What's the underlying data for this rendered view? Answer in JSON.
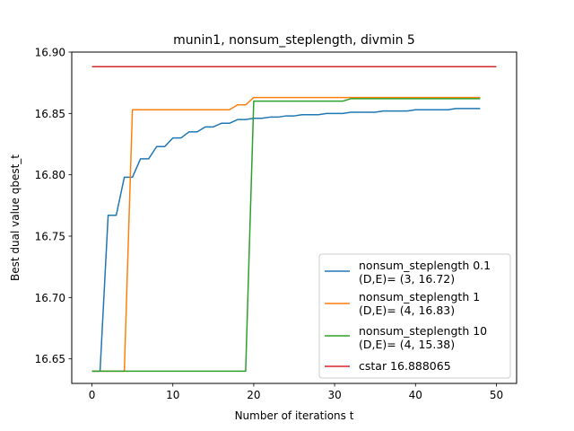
{
  "chart_data": {
    "type": "line",
    "title": "munin1, nonsum_steplength, divmin 5",
    "xlabel": "Number of iterations t",
    "ylabel": "Best dual value qbest_t",
    "xlim": [
      -2.5,
      52.5
    ],
    "ylim": [
      16.63,
      16.9
    ],
    "xticks": [
      0,
      10,
      20,
      30,
      40,
      50
    ],
    "xtick_labels": [
      "0",
      "10",
      "20",
      "30",
      "40",
      "50"
    ],
    "yticks": [
      16.65,
      16.7,
      16.75,
      16.8,
      16.85,
      16.9
    ],
    "ytick_labels": [
      "16.65",
      "16.70",
      "16.75",
      "16.80",
      "16.85",
      "16.90"
    ],
    "grid": false,
    "legend_position": "lower-right",
    "series": [
      {
        "name": "nonsum_steplength 0.1",
        "name_line2": "(D,E)= (3, 16.72)",
        "color": "#1f77b4",
        "x": [
          0,
          1,
          2,
          3,
          4,
          5,
          6,
          7,
          8,
          9,
          10,
          11,
          12,
          13,
          14,
          15,
          16,
          17,
          18,
          19,
          20,
          21,
          22,
          23,
          24,
          25,
          26,
          27,
          28,
          29,
          30,
          31,
          32,
          33,
          34,
          35,
          36,
          37,
          38,
          39,
          40,
          41,
          42,
          43,
          44,
          45,
          46,
          47,
          48
        ],
        "y": [
          16.64,
          16.64,
          16.767,
          16.767,
          16.798,
          16.798,
          16.813,
          16.813,
          16.823,
          16.823,
          16.83,
          16.83,
          16.835,
          16.835,
          16.839,
          16.839,
          16.842,
          16.842,
          16.845,
          16.845,
          16.846,
          16.846,
          16.847,
          16.847,
          16.848,
          16.848,
          16.849,
          16.849,
          16.849,
          16.85,
          16.85,
          16.85,
          16.851,
          16.851,
          16.851,
          16.851,
          16.852,
          16.852,
          16.852,
          16.852,
          16.853,
          16.853,
          16.853,
          16.853,
          16.853,
          16.854,
          16.854,
          16.854,
          16.854
        ]
      },
      {
        "name": "nonsum_steplength 1",
        "name_line2": "(D,E)= (4, 16.83)",
        "color": "#ff7f0e",
        "x": [
          0,
          1,
          2,
          3,
          4,
          5,
          6,
          7,
          8,
          9,
          10,
          11,
          12,
          13,
          14,
          15,
          16,
          17,
          18,
          19,
          20,
          21,
          22,
          23,
          24,
          25,
          26,
          27,
          28,
          29,
          30,
          31,
          32,
          33,
          34,
          35,
          36,
          37,
          38,
          39,
          40,
          41,
          42,
          43,
          44,
          45,
          46,
          47,
          48
        ],
        "y": [
          16.64,
          16.64,
          16.64,
          16.64,
          16.64,
          16.853,
          16.853,
          16.853,
          16.853,
          16.853,
          16.853,
          16.853,
          16.853,
          16.853,
          16.853,
          16.853,
          16.853,
          16.853,
          16.857,
          16.857,
          16.863,
          16.863,
          16.863,
          16.863,
          16.863,
          16.863,
          16.863,
          16.863,
          16.863,
          16.863,
          16.863,
          16.863,
          16.863,
          16.863,
          16.863,
          16.863,
          16.863,
          16.863,
          16.863,
          16.863,
          16.863,
          16.863,
          16.863,
          16.863,
          16.863,
          16.863,
          16.863,
          16.863,
          16.863
        ]
      },
      {
        "name": "nonsum_steplength 10",
        "name_line2": "(D,E)= (4, 15.38)",
        "color": "#2ca02c",
        "x": [
          0,
          1,
          2,
          3,
          4,
          5,
          6,
          7,
          8,
          9,
          10,
          11,
          12,
          13,
          14,
          15,
          16,
          17,
          18,
          19,
          20,
          21,
          22,
          23,
          24,
          25,
          26,
          27,
          28,
          29,
          30,
          31,
          32,
          33,
          34,
          35,
          36,
          37,
          38,
          39,
          40,
          41,
          42,
          43,
          44,
          45,
          46,
          47,
          48
        ],
        "y": [
          16.64,
          16.64,
          16.64,
          16.64,
          16.64,
          16.64,
          16.64,
          16.64,
          16.64,
          16.64,
          16.64,
          16.64,
          16.64,
          16.64,
          16.64,
          16.64,
          16.64,
          16.64,
          16.64,
          16.64,
          16.86,
          16.86,
          16.86,
          16.86,
          16.86,
          16.86,
          16.86,
          16.86,
          16.86,
          16.86,
          16.86,
          16.86,
          16.862,
          16.862,
          16.862,
          16.862,
          16.862,
          16.862,
          16.862,
          16.862,
          16.862,
          16.862,
          16.862,
          16.862,
          16.862,
          16.862,
          16.862,
          16.862,
          16.862
        ]
      },
      {
        "name": "cstar 16.888065",
        "name_line2": "",
        "color": "#d62728",
        "x": [
          0,
          50
        ],
        "y": [
          16.888065,
          16.888065
        ]
      }
    ]
  }
}
